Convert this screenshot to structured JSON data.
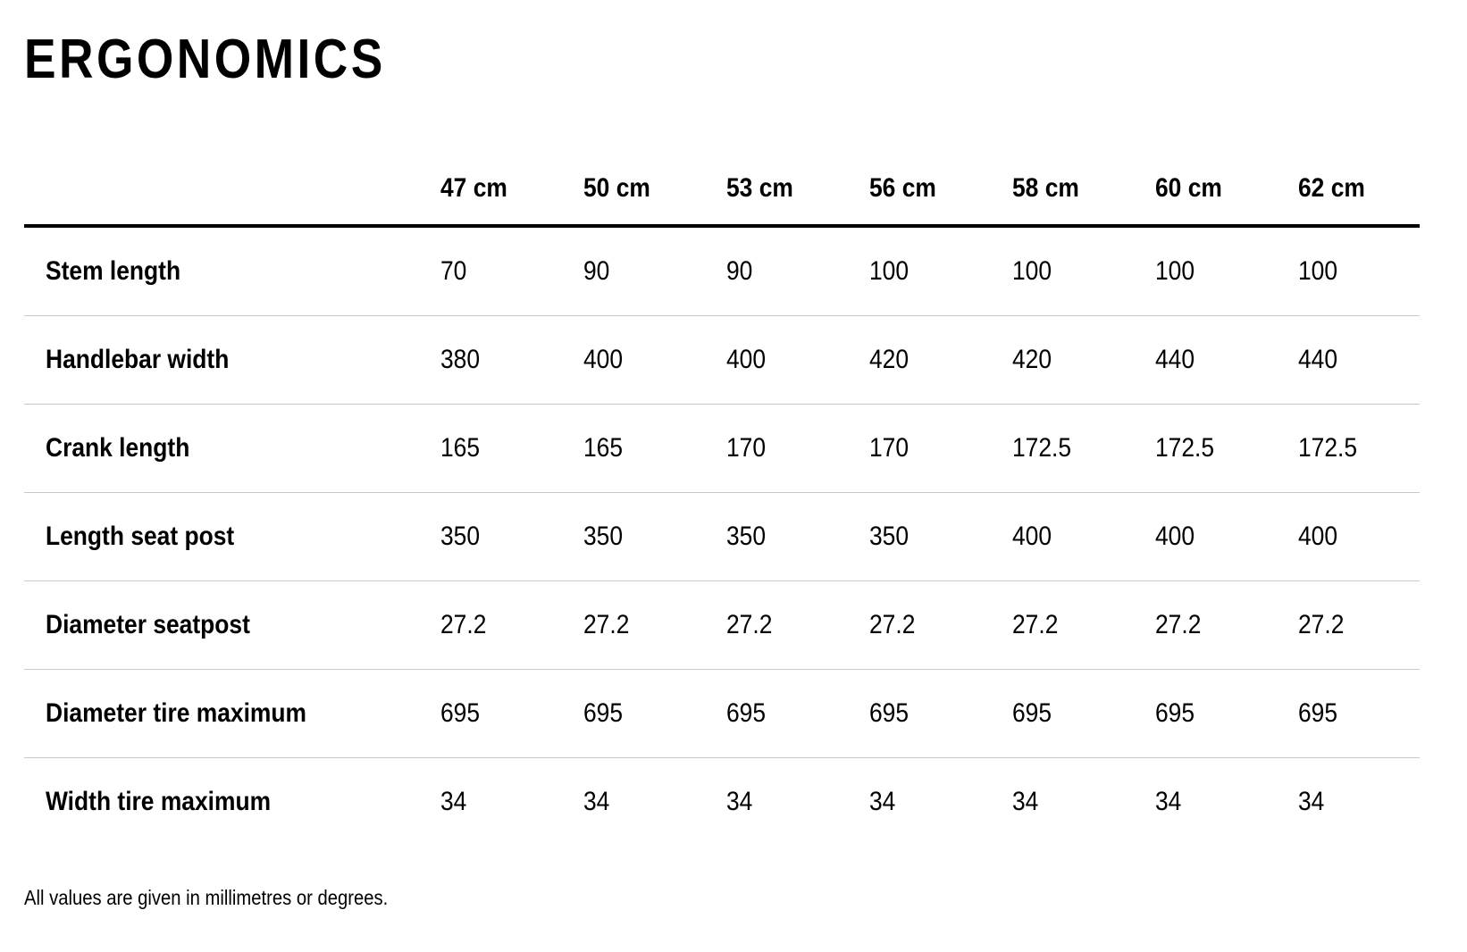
{
  "title": "ERGONOMICS",
  "table": {
    "sizes": [
      "47 cm",
      "50 cm",
      "53 cm",
      "56 cm",
      "58 cm",
      "60 cm",
      "62 cm"
    ],
    "rows": [
      {
        "label": "Stem length",
        "values": [
          "70",
          "90",
          "90",
          "100",
          "100",
          "100",
          "100"
        ]
      },
      {
        "label": "Handlebar width",
        "values": [
          "380",
          "400",
          "400",
          "420",
          "420",
          "440",
          "440"
        ]
      },
      {
        "label": "Crank length",
        "values": [
          "165",
          "165",
          "170",
          "170",
          "172.5",
          "172.5",
          "172.5"
        ]
      },
      {
        "label": "Length seat post",
        "values": [
          "350",
          "350",
          "350",
          "350",
          "400",
          "400",
          "400"
        ]
      },
      {
        "label": "Diameter seatpost",
        "values": [
          "27.2",
          "27.2",
          "27.2",
          "27.2",
          "27.2",
          "27.2",
          "27.2"
        ]
      },
      {
        "label": "Diameter tire maximum",
        "values": [
          "695",
          "695",
          "695",
          "695",
          "695",
          "695",
          "695"
        ]
      },
      {
        "label": "Width tire maximum",
        "values": [
          "34",
          "34",
          "34",
          "34",
          "34",
          "34",
          "34"
        ]
      }
    ]
  },
  "footnote": "All values are given in millimetres or degrees."
}
